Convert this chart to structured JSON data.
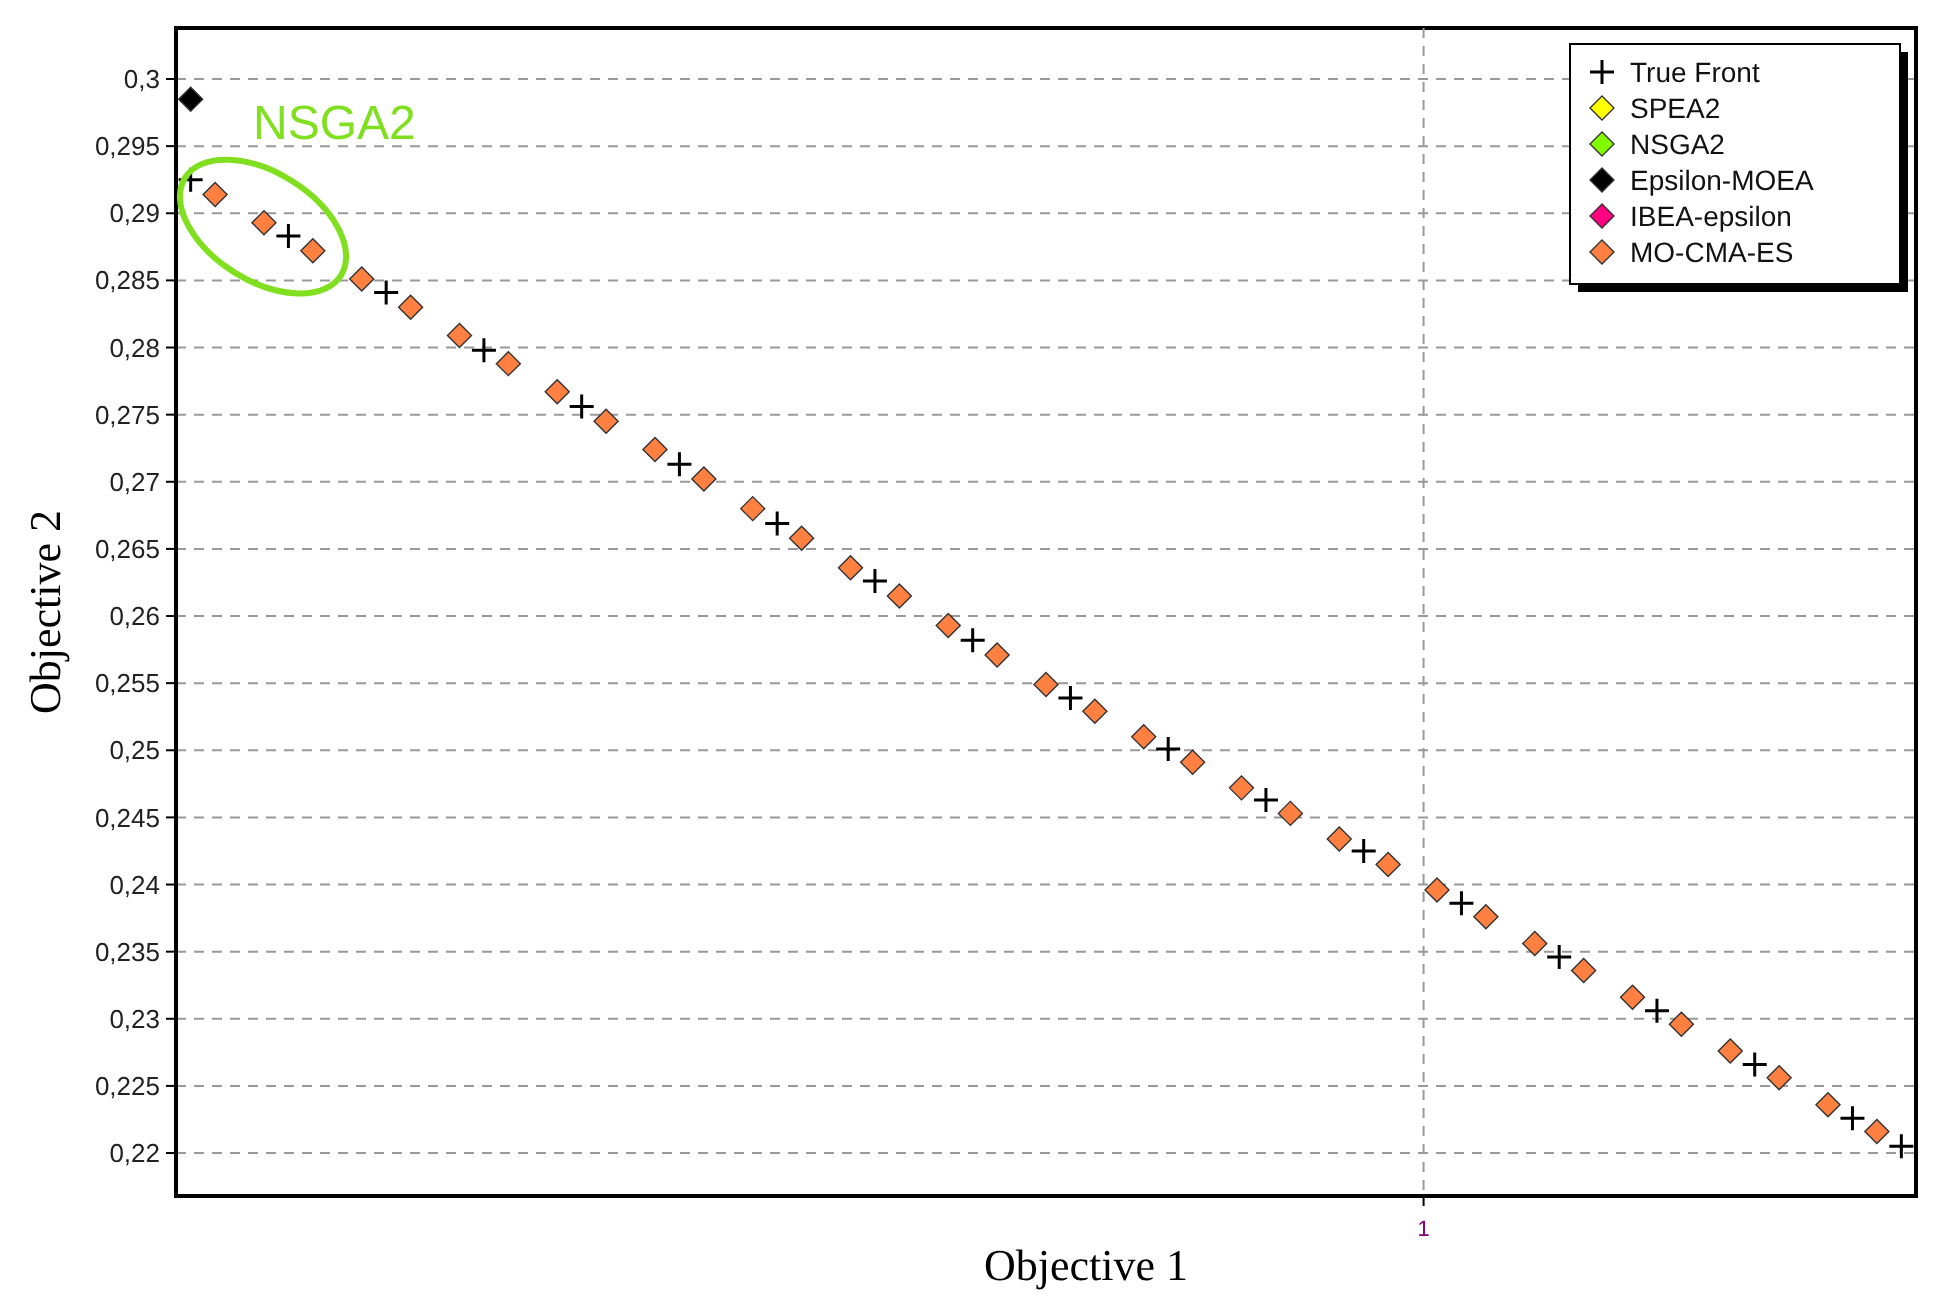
{
  "chart_data": {
    "type": "scatter",
    "xlabel": "Objective 1",
    "ylabel": "Objective 2",
    "categories": [
      null,
      null,
      null,
      null,
      null,
      null,
      null,
      null,
      null,
      null,
      null,
      null,
      null,
      null,
      null,
      null,
      null,
      null,
      null,
      null,
      null,
      null,
      null,
      null,
      null,
      null,
      null,
      null,
      null,
      null,
      null,
      null,
      null,
      null,
      null,
      null,
      null,
      null,
      null,
      null,
      null,
      null,
      null,
      null,
      null,
      null,
      null,
      null,
      null,
      null,
      null,
      null,
      null,
      null,
      null,
      null,
      null,
      null,
      null,
      null,
      null,
      null,
      null,
      null,
      null,
      null,
      null,
      null,
      null,
      null,
      null
    ],
    "ylim": [
      0.2168,
      0.3038
    ],
    "yticks": [
      {
        "value": 0.22,
        "label": "0,22"
      },
      {
        "value": 0.225,
        "label": "0,225"
      },
      {
        "value": 0.23,
        "label": "0,23"
      },
      {
        "value": 0.235,
        "label": "0,235"
      },
      {
        "value": 0.24,
        "label": "0,24"
      },
      {
        "value": 0.245,
        "label": "0,245"
      },
      {
        "value": 0.25,
        "label": "0,25"
      },
      {
        "value": 0.255,
        "label": "0,255"
      },
      {
        "value": 0.26,
        "label": "0,26"
      },
      {
        "value": 0.265,
        "label": "0,265"
      },
      {
        "value": 0.27,
        "label": "0,27"
      },
      {
        "value": 0.275,
        "label": "0,275"
      },
      {
        "value": 0.28,
        "label": "0,28"
      },
      {
        "value": 0.285,
        "label": "0,285"
      },
      {
        "value": 0.29,
        "label": "0,29"
      },
      {
        "value": 0.295,
        "label": "0,295"
      },
      {
        "value": 0.3,
        "label": "0,3"
      }
    ],
    "grid": true,
    "legend": "top right",
    "annotations": [
      "NSGA2",
      "1"
    ],
    "series": [
      {
        "name": "True Front",
        "color": "#000000",
        "marker": "cross",
        "values": [
          0.2925,
          null,
          null,
          null,
          0.2883,
          null,
          null,
          null,
          0.2841,
          null,
          null,
          null,
          0.2798,
          null,
          null,
          null,
          0.2756,
          null,
          null,
          null,
          0.2713,
          null,
          null,
          null,
          0.2669,
          null,
          null,
          null,
          0.2626,
          null,
          null,
          null,
          0.2582,
          null,
          null,
          null,
          0.2539,
          null,
          null,
          null,
          0.2501,
          null,
          null,
          null,
          0.2463,
          null,
          null,
          null,
          0.2425,
          null,
          null,
          null,
          0.2386,
          null,
          null,
          null,
          0.2346,
          null,
          null,
          null,
          0.2306,
          null,
          null,
          null,
          0.2266,
          null,
          null,
          null,
          0.2226,
          null,
          0.2205
        ]
      },
      {
        "name": "SPEA2",
        "color": "#ffff00",
        "marker": "diamond",
        "values": [
          null,
          null,
          null,
          null,
          null,
          null,
          null,
          null,
          null,
          null,
          null,
          null,
          null,
          null,
          null,
          null,
          null,
          null,
          null,
          null,
          null,
          null,
          null,
          null,
          null,
          null,
          null,
          null,
          null,
          null,
          null,
          null,
          null,
          null,
          null,
          null,
          null,
          null,
          null,
          null,
          null,
          null,
          null,
          null,
          null,
          null,
          null,
          null,
          null,
          null,
          null,
          null,
          null,
          null,
          null,
          null,
          null,
          null,
          null,
          null,
          null,
          null,
          null,
          null,
          null,
          null,
          null,
          null,
          null,
          null,
          null
        ]
      },
      {
        "name": "NSGA2",
        "color": "#80ff00",
        "marker": "diamond",
        "values": [
          null,
          null,
          null,
          null,
          null,
          null,
          null,
          null,
          null,
          null,
          null,
          null,
          null,
          null,
          null,
          null,
          null,
          null,
          null,
          null,
          null,
          null,
          null,
          null,
          null,
          null,
          null,
          null,
          null,
          null,
          null,
          null,
          null,
          null,
          null,
          null,
          null,
          null,
          null,
          null,
          null,
          null,
          null,
          null,
          null,
          null,
          null,
          null,
          null,
          null,
          null,
          null,
          null,
          null,
          null,
          null,
          null,
          null,
          null,
          null,
          null,
          null,
          null,
          null,
          null,
          null,
          null,
          null,
          null,
          null,
          null
        ]
      },
      {
        "name": "Epsilon-MOEA",
        "color": "#000000",
        "marker": "diamond",
        "values": [
          0.2985,
          null,
          null,
          null,
          null,
          null,
          null,
          null,
          null,
          null,
          null,
          null,
          null,
          null,
          null,
          null,
          null,
          null,
          null,
          null,
          null,
          null,
          null,
          null,
          null,
          null,
          null,
          null,
          null,
          null,
          null,
          null,
          null,
          null,
          null,
          null,
          null,
          null,
          null,
          null,
          null,
          null,
          null,
          null,
          null,
          null,
          null,
          null,
          null,
          null,
          null,
          null,
          null,
          null,
          null,
          null,
          null,
          null,
          null,
          null,
          null,
          null,
          null,
          null,
          null,
          null,
          null,
          null,
          null,
          null,
          null
        ]
      },
      {
        "name": "IBEA-epsilon",
        "color": "#ff0080",
        "marker": "diamond",
        "values": [
          null,
          null,
          null,
          null,
          null,
          null,
          null,
          null,
          null,
          null,
          null,
          null,
          null,
          null,
          null,
          null,
          null,
          null,
          null,
          null,
          null,
          null,
          null,
          null,
          null,
          null,
          null,
          null,
          null,
          null,
          null,
          null,
          null,
          null,
          null,
          null,
          null,
          null,
          null,
          null,
          null,
          null,
          null,
          null,
          null,
          null,
          null,
          null,
          null,
          null,
          null,
          null,
          null,
          null,
          null,
          null,
          null,
          null,
          null,
          null,
          null,
          null,
          null,
          null,
          null,
          null,
          null,
          null,
          null,
          null,
          null
        ]
      },
      {
        "name": "MO-CMA-ES",
        "color": "#ff8040",
        "marker": "diamond",
        "values": [
          null,
          0.2914,
          null,
          0.2893,
          null,
          0.2872,
          null,
          0.2851,
          null,
          0.283,
          null,
          0.2809,
          null,
          0.2788,
          null,
          0.2767,
          null,
          0.2745,
          null,
          0.2724,
          null,
          0.2702,
          null,
          0.268,
          null,
          0.2658,
          null,
          0.2636,
          null,
          0.2615,
          null,
          0.2593,
          null,
          0.2571,
          null,
          0.2549,
          null,
          0.2529,
          null,
          0.251,
          null,
          0.2491,
          null,
          0.2472,
          null,
          0.2453,
          null,
          0.2434,
          null,
          0.2415,
          null,
          0.2396,
          null,
          0.2376,
          null,
          0.2356,
          null,
          0.2336,
          null,
          0.2316,
          null,
          0.2296,
          null,
          0.2276,
          null,
          0.2256,
          null,
          0.2236,
          null,
          0.2216,
          null
        ]
      }
    ]
  }
}
